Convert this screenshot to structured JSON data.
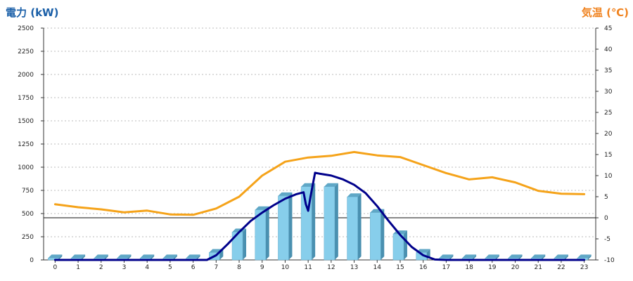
{
  "chart_data": {
    "type": "bar+line",
    "left_axis": {
      "title": "電力 (kW)",
      "ticks": [
        "0",
        "250",
        "500",
        "750",
        "1000",
        "1250",
        "1500",
        "1750",
        "2000",
        "2250",
        "2500"
      ],
      "ylim": [
        0,
        2500
      ]
    },
    "right_axis": {
      "title": "気温 (℃)",
      "ticks": [
        "-10",
        "-5",
        "0",
        "5",
        "10",
        "15",
        "20",
        "25",
        "30",
        "35",
        "40",
        "45"
      ],
      "ylim": [
        -10,
        45
      ]
    },
    "categories": [
      "0",
      "1",
      "2",
      "3",
      "4",
      "5",
      "6",
      "7",
      "8",
      "9",
      "10",
      "11",
      "12",
      "13",
      "14",
      "15",
      "16",
      "17",
      "18",
      "19",
      "20",
      "21",
      "22",
      "23"
    ],
    "series": [
      {
        "kind": "bar",
        "axis": "left",
        "color": "#87ceeb",
        "values": [
          20,
          20,
          20,
          20,
          20,
          20,
          20,
          80,
          300,
          540,
          690,
          790,
          790,
          680,
          510,
          280,
          80,
          20,
          20,
          20,
          20,
          20,
          20,
          20
        ]
      },
      {
        "kind": "line",
        "axis": "left",
        "color": "#00008b",
        "x": [
          0,
          1,
          2,
          3,
          4,
          5,
          6,
          6.6,
          7,
          7.5,
          8,
          8.5,
          9,
          9.5,
          10,
          10.5,
          10.8,
          10.9,
          11,
          11.1,
          11.3,
          11.5,
          12,
          12.5,
          13,
          13.5,
          14,
          14.5,
          15,
          15.5,
          16,
          16.5,
          17,
          18,
          19,
          20,
          21,
          22,
          23
        ],
        "values": [
          0,
          0,
          0,
          0,
          0,
          0,
          0,
          0,
          50,
          170,
          300,
          420,
          510,
          590,
          660,
          710,
          730,
          600,
          530,
          680,
          940,
          930,
          910,
          870,
          810,
          720,
          580,
          420,
          270,
          140,
          50,
          5,
          0,
          0,
          0,
          0,
          0,
          0,
          0
        ]
      },
      {
        "kind": "line",
        "axis": "right",
        "color": "#f5a31a",
        "x": [
          0,
          1,
          2,
          3,
          4,
          5,
          6,
          7,
          8,
          9,
          10,
          11,
          12,
          13,
          14,
          15,
          16,
          17,
          18,
          19,
          20,
          21,
          22,
          23
        ],
        "values": [
          3.2,
          2.5,
          2.0,
          1.3,
          1.7,
          0.8,
          0.7,
          2.2,
          5.0,
          10.0,
          13.3,
          14.3,
          14.7,
          15.6,
          14.8,
          14.4,
          12.5,
          10.6,
          9.1,
          9.6,
          8.4,
          6.4,
          5.7,
          5.6
        ]
      }
    ],
    "grid": "horizontal-dashed",
    "zero_line_right_axis": true
  }
}
